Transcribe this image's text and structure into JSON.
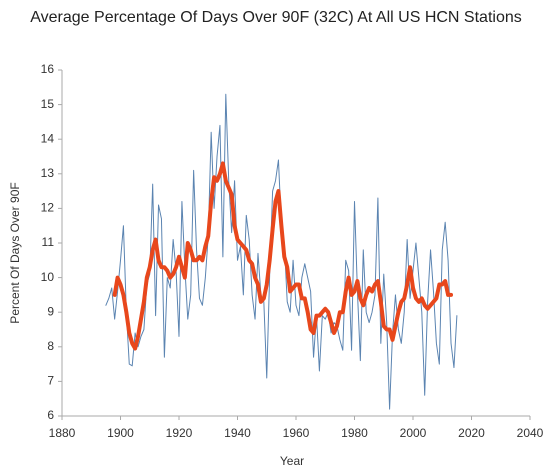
{
  "chart_data": {
    "type": "line",
    "title": "Average Percentage Of Days Over 90F (32C) At All US HCN Stations",
    "xlabel": "Year",
    "ylabel": "Percent Of Days Over 90F",
    "x": [
      1895,
      1896,
      1897,
      1898,
      1899,
      1900,
      1901,
      1902,
      1903,
      1904,
      1905,
      1906,
      1907,
      1908,
      1909,
      1910,
      1911,
      1912,
      1913,
      1914,
      1915,
      1916,
      1917,
      1918,
      1919,
      1920,
      1921,
      1922,
      1923,
      1924,
      1925,
      1926,
      1927,
      1928,
      1929,
      1930,
      1931,
      1932,
      1933,
      1934,
      1935,
      1936,
      1937,
      1938,
      1939,
      1940,
      1941,
      1942,
      1943,
      1944,
      1945,
      1946,
      1947,
      1948,
      1949,
      1950,
      1951,
      1952,
      1953,
      1954,
      1955,
      1956,
      1957,
      1958,
      1959,
      1960,
      1961,
      1962,
      1963,
      1964,
      1965,
      1966,
      1967,
      1968,
      1969,
      1970,
      1971,
      1972,
      1973,
      1974,
      1975,
      1976,
      1977,
      1978,
      1979,
      1980,
      1981,
      1982,
      1983,
      1984,
      1985,
      1986,
      1987,
      1988,
      1989,
      1990,
      1991,
      1992,
      1993,
      1994,
      1995,
      1996,
      1997,
      1998,
      1999,
      2000,
      2001,
      2002,
      2003,
      2004,
      2005,
      2006,
      2007,
      2008,
      2009,
      2010,
      2011,
      2012,
      2013,
      2014,
      2015
    ],
    "series": [
      {
        "color": "#5b84b1",
        "width": 1,
        "values": [
          9.2,
          9.4,
          9.7,
          8.8,
          9.6,
          10.5,
          11.5,
          9.0,
          7.5,
          7.45,
          8.4,
          8.0,
          8.3,
          8.5,
          9.8,
          10.1,
          12.7,
          8.9,
          12.1,
          11.7,
          7.7,
          10.0,
          9.7,
          11.1,
          10.2,
          8.3,
          12.2,
          10.3,
          8.8,
          9.5,
          13.1,
          10.8,
          9.4,
          9.2,
          10.0,
          11.2,
          14.2,
          12.0,
          13.5,
          14.4,
          10.6,
          15.3,
          12.8,
          11.3,
          12.8,
          10.5,
          10.9,
          9.5,
          11.8,
          11.1,
          9.5,
          8.8,
          10.7,
          9.5,
          9.3,
          7.1,
          10.1,
          12.5,
          12.8,
          13.4,
          11.5,
          11.0,
          9.3,
          9.0,
          10.5,
          9.2,
          8.9,
          10.0,
          10.4,
          10.0,
          9.6,
          7.7,
          8.9,
          7.3,
          8.9,
          8.8,
          9.0,
          8.4,
          8.7,
          8.6,
          8.2,
          7.9,
          10.5,
          10.2,
          7.9,
          12.2,
          9.6,
          7.6,
          10.8,
          9.0,
          8.7,
          9.0,
          9.5,
          12.3,
          8.1,
          10.1,
          8.7,
          6.2,
          8.4,
          9.5,
          8.5,
          8.1,
          9.0,
          11.1,
          9.4,
          10.2,
          11.0,
          10.0,
          9.0,
          6.6,
          9.3,
          10.8,
          9.6,
          8.1,
          7.5,
          10.8,
          11.6,
          10.5,
          8.1,
          7.4,
          8.9
        ]
      },
      {
        "color": "#e8471c",
        "width": 4,
        "values": [
          null,
          null,
          null,
          9.5,
          10.0,
          9.8,
          9.5,
          9.0,
          8.4,
          8.1,
          7.95,
          8.3,
          8.8,
          9.3,
          10.0,
          10.3,
          10.8,
          11.1,
          10.5,
          10.3,
          10.3,
          10.2,
          10.0,
          10.1,
          10.3,
          10.6,
          10.3,
          10.0,
          11.0,
          10.8,
          10.5,
          10.5,
          10.6,
          10.5,
          10.9,
          11.2,
          12.2,
          12.9,
          12.8,
          13.0,
          13.3,
          12.8,
          12.6,
          12.4,
          11.5,
          11.1,
          11.0,
          10.9,
          10.8,
          10.5,
          10.4,
          10.0,
          9.8,
          9.3,
          9.4,
          9.8,
          10.5,
          11.4,
          12.2,
          12.5,
          11.5,
          10.6,
          10.3,
          9.6,
          9.7,
          9.8,
          9.8,
          9.4,
          9.4,
          9.0,
          8.5,
          8.4,
          8.9,
          8.9,
          9.0,
          9.1,
          9.0,
          8.7,
          8.4,
          8.6,
          9.0,
          9.0,
          9.6,
          10.0,
          9.5,
          9.6,
          9.9,
          9.4,
          9.2,
          9.5,
          9.7,
          9.6,
          9.8,
          9.9,
          9.3,
          8.6,
          8.5,
          8.5,
          8.2,
          8.6,
          9.0,
          9.3,
          9.4,
          9.8,
          10.3,
          9.7,
          9.4,
          9.3,
          9.4,
          9.2,
          9.1,
          9.2,
          9.3,
          9.4,
          9.8,
          9.8,
          9.9,
          9.5,
          9.5,
          null,
          null
        ]
      }
    ],
    "xlim": [
      1880,
      2040
    ],
    "xticks": [
      1880,
      1900,
      1920,
      1940,
      1960,
      1980,
      2000,
      2020,
      2040
    ],
    "ylim": [
      6,
      16
    ],
    "yticks": [
      6,
      7,
      8,
      9,
      10,
      11,
      12,
      13,
      14,
      15,
      16
    ],
    "grid": false
  }
}
